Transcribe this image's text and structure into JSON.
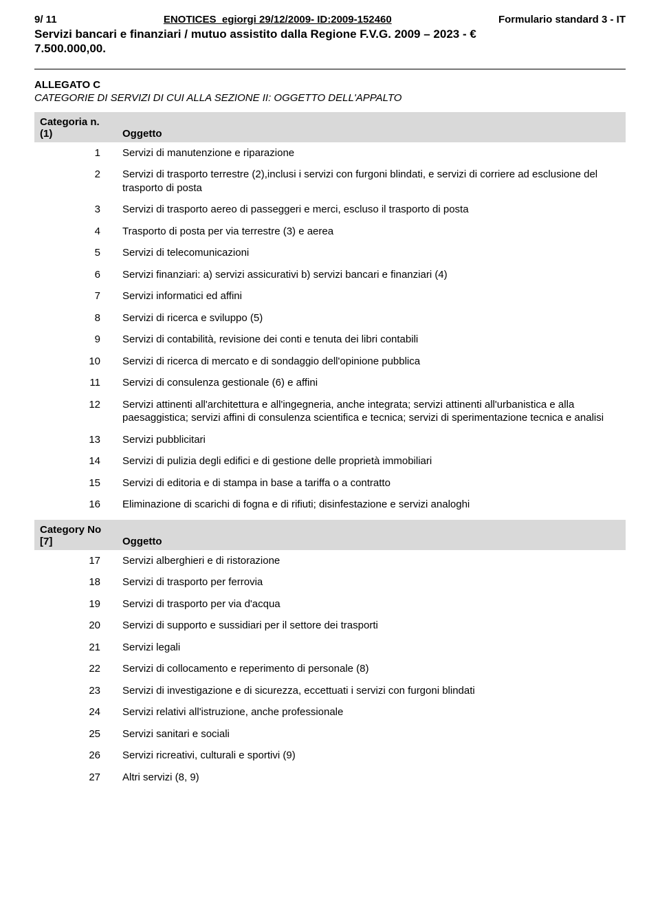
{
  "header": {
    "page_counter": "9/ 11",
    "center": "ENOTICES_egiorgi 29/12/2009- ID:2009-152460",
    "right": "Formulario standard 3 - IT"
  },
  "title_line1": "Servizi bancari e finanziari / mutuo assistito dalla Regione F.V.G. 2009 – 2023 - €",
  "title_line2": "7.500.000,00.",
  "allegato_label": "ALLEGATO C",
  "allegato_sub": "CATEGORIE DI SERVIZI DI CUI ALLA SEZIONE II: OGGETTO DELL'APPALTO",
  "table1_header": {
    "col1_line1": "Categoria n.",
    "col1_line2": "(1)",
    "col2": "Oggetto"
  },
  "table1_rows": [
    {
      "n": "1",
      "t": "Servizi di manutenzione e riparazione"
    },
    {
      "n": "2",
      "t": "Servizi di trasporto terrestre (2),inclusi i servizi con furgoni blindati, e servizi di corriere ad esclusione del trasporto di posta"
    },
    {
      "n": "3",
      "t": "Servizi di trasporto aereo di passeggeri e merci, escluso il trasporto di posta"
    },
    {
      "n": "4",
      "t": "Trasporto di posta per via terrestre (3) e aerea"
    },
    {
      "n": "5",
      "t": "Servizi di telecomunicazioni"
    },
    {
      "n": "6",
      "t": "Servizi finanziari: a) servizi assicurativi b) servizi bancari e finanziari (4)"
    },
    {
      "n": "7",
      "t": "Servizi informatici ed affini"
    },
    {
      "n": "8",
      "t": "Servizi di ricerca e sviluppo (5)"
    },
    {
      "n": "9",
      "t": "Servizi di contabilità, revisione dei conti e tenuta dei libri contabili"
    },
    {
      "n": "10",
      "t": "Servizi di ricerca di mercato e di sondaggio dell'opinione pubblica"
    },
    {
      "n": "11",
      "t": "Servizi di consulenza gestionale (6) e affini"
    },
    {
      "n": "12",
      "t": "Servizi attinenti all'architettura e all'ingegneria, anche integrata; servizi attinenti all'urbanistica e alla paesaggistica; servizi affini di consulenza scientifica e tecnica; servizi di sperimentazione tecnica e analisi"
    },
    {
      "n": "13",
      "t": "Servizi pubblicitari"
    },
    {
      "n": "14",
      "t": "Servizi di pulizia degli edifici e di gestione delle proprietà immobiliari"
    },
    {
      "n": "15",
      "t": "Servizi di editoria e di stampa in base a tariffa o a contratto"
    },
    {
      "n": "16",
      "t": "Eliminazione di scarichi di fogna e di rifiuti; disinfestazione e servizi analoghi"
    }
  ],
  "table2_header": {
    "col1_line1": "Category No",
    "col1_line2": "[7]",
    "col2": "Oggetto"
  },
  "table2_rows": [
    {
      "n": "17",
      "t": "Servizi alberghieri e di ristorazione"
    },
    {
      "n": "18",
      "t": "Servizi di trasporto per ferrovia"
    },
    {
      "n": "19",
      "t": "Servizi di trasporto per via d'acqua"
    },
    {
      "n": "20",
      "t": "Servizi di supporto e sussidiari per il settore dei trasporti"
    },
    {
      "n": "21",
      "t": "Servizi legali"
    },
    {
      "n": "22",
      "t": "Servizi di collocamento e reperimento di personale (8)"
    },
    {
      "n": "23",
      "t": "Servizi di investigazione e di sicurezza, eccettuati i servizi con furgoni blindati"
    },
    {
      "n": "24",
      "t": "Servizi relativi all'istruzione, anche professionale"
    },
    {
      "n": "25",
      "t": "Servizi sanitari e sociali"
    },
    {
      "n": "26",
      "t": "Servizi ricreativi, culturali e sportivi (9)"
    },
    {
      "n": "27",
      "t": "Altri servizi (8, 9)"
    }
  ]
}
